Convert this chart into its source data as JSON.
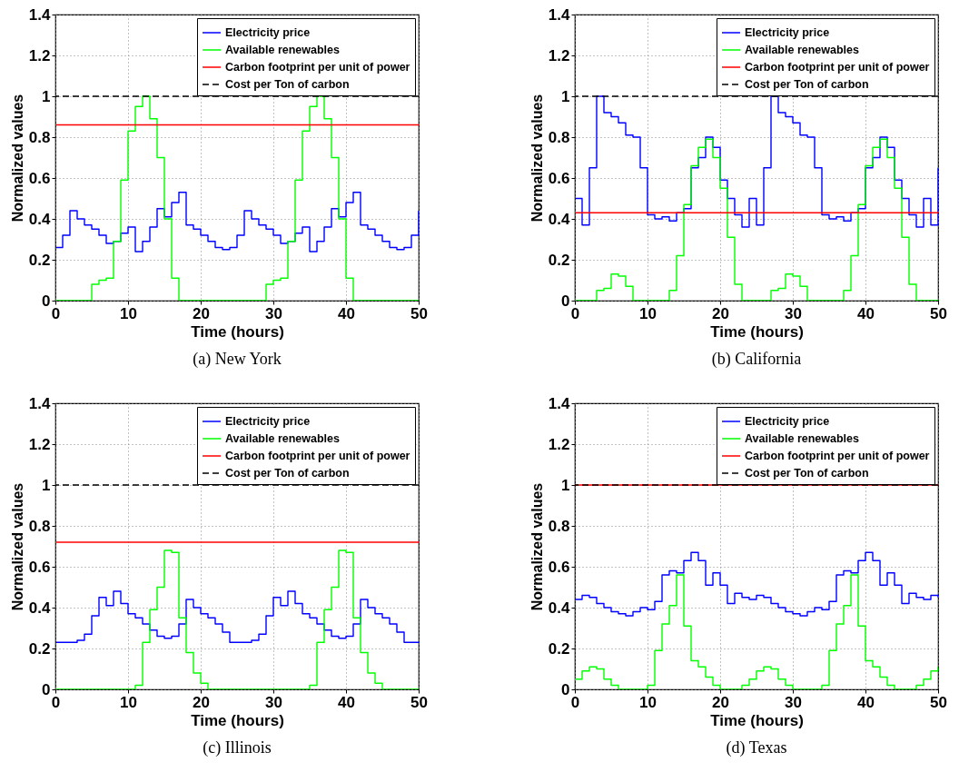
{
  "chart_data": [
    {
      "type": "step",
      "title": "(a) New York",
      "xlabel": "Time (hours)",
      "ylabel": "Normalized values",
      "x": [
        0,
        1,
        2,
        3,
        4,
        5,
        6,
        7,
        8,
        9,
        10,
        11,
        12,
        13,
        14,
        15,
        16,
        17,
        18,
        19,
        20,
        21,
        22,
        23,
        24,
        25,
        26,
        27,
        28,
        29,
        30,
        31,
        32,
        33,
        34,
        35,
        36,
        37,
        38,
        39,
        40,
        41,
        42,
        43,
        44,
        45,
        46,
        47,
        48,
        49,
        50
      ],
      "xlim": [
        0,
        50
      ],
      "xticks": [
        0,
        10,
        20,
        30,
        40,
        50
      ],
      "ylim": [
        0,
        1.4
      ],
      "yticks": [
        0,
        0.2,
        0.4,
        0.6,
        0.8,
        1,
        1.2,
        1.4
      ],
      "grid": true,
      "legend": "top right",
      "series": [
        {
          "name": "Electricity price",
          "color": "#0000ff",
          "values": [
            0.26,
            0.32,
            0.44,
            0.4,
            0.37,
            0.35,
            0.32,
            0.28,
            0.29,
            0.33,
            0.36,
            0.24,
            0.29,
            0.36,
            0.45,
            0.41,
            0.48,
            0.53,
            0.37,
            0.35,
            0.32,
            0.29,
            0.26,
            0.25,
            0.26,
            0.32,
            0.44,
            0.4,
            0.37,
            0.35,
            0.32,
            0.28,
            0.29,
            0.33,
            0.36,
            0.24,
            0.29,
            0.36,
            0.45,
            0.41,
            0.48,
            0.53,
            0.37,
            0.35,
            0.32,
            0.29,
            0.26,
            0.25,
            0.26,
            0.32,
            0.44
          ]
        },
        {
          "name": "Available renewables",
          "color": "#00ff00",
          "values": [
            0,
            0,
            0,
            0,
            0,
            0.08,
            0.1,
            0.11,
            0.29,
            0.59,
            0.83,
            0.95,
            1.0,
            0.89,
            0.7,
            0.4,
            0.11,
            0,
            0,
            0,
            0,
            0,
            0,
            0,
            0,
            0,
            0,
            0,
            0,
            0.08,
            0.1,
            0.11,
            0.29,
            0.59,
            0.83,
            0.95,
            1.0,
            0.89,
            0.7,
            0.4,
            0.11,
            0,
            0,
            0,
            0,
            0,
            0,
            0,
            0,
            0,
            0
          ]
        }
      ],
      "ref_lines": [
        {
          "axis": "y",
          "value": 0.86,
          "label": "Carbon footprint per unit of power",
          "color": "#ff0000"
        },
        {
          "axis": "y",
          "value": 1,
          "label": "Cost per Ton of carbon",
          "color": "#000000",
          "line_style": "dashed"
        }
      ]
    },
    {
      "type": "step",
      "title": "(b) California",
      "xlabel": "Time (hours)",
      "ylabel": "Normalized values",
      "x": [
        0,
        1,
        2,
        3,
        4,
        5,
        6,
        7,
        8,
        9,
        10,
        11,
        12,
        13,
        14,
        15,
        16,
        17,
        18,
        19,
        20,
        21,
        22,
        23,
        24,
        25,
        26,
        27,
        28,
        29,
        30,
        31,
        32,
        33,
        34,
        35,
        36,
        37,
        38,
        39,
        40,
        41,
        42,
        43,
        44,
        45,
        46,
        47,
        48,
        49,
        50
      ],
      "xlim": [
        0,
        50
      ],
      "xticks": [
        0,
        10,
        20,
        30,
        40,
        50
      ],
      "ylim": [
        0,
        1.4
      ],
      "yticks": [
        0,
        0.2,
        0.4,
        0.6,
        0.8,
        1,
        1.2,
        1.4
      ],
      "grid": true,
      "legend": "top right",
      "series": [
        {
          "name": "Electricity price",
          "color": "#0000ff",
          "values": [
            0.5,
            0.37,
            0.65,
            1.0,
            0.92,
            0.9,
            0.87,
            0.81,
            0.8,
            0.65,
            0.42,
            0.4,
            0.41,
            0.39,
            0.43,
            0.45,
            0.65,
            0.7,
            0.8,
            0.75,
            0.59,
            0.5,
            0.42,
            0.36,
            0.5,
            0.37,
            0.65,
            1.0,
            0.92,
            0.9,
            0.87,
            0.81,
            0.8,
            0.65,
            0.42,
            0.4,
            0.41,
            0.39,
            0.43,
            0.45,
            0.65,
            0.7,
            0.8,
            0.75,
            0.59,
            0.5,
            0.42,
            0.36,
            0.5,
            0.37,
            0.65
          ]
        },
        {
          "name": "Available renewables",
          "color": "#00ff00",
          "values": [
            0,
            0,
            0,
            0.05,
            0.06,
            0.13,
            0.12,
            0.07,
            0,
            0,
            0,
            0,
            0,
            0.05,
            0.22,
            0.47,
            0.66,
            0.75,
            0.79,
            0.7,
            0.55,
            0.31,
            0.08,
            0,
            0,
            0,
            0,
            0.05,
            0.06,
            0.13,
            0.12,
            0.07,
            0,
            0,
            0,
            0,
            0,
            0.05,
            0.22,
            0.47,
            0.66,
            0.75,
            0.79,
            0.7,
            0.55,
            0.31,
            0.08,
            0,
            0,
            0,
            0
          ]
        }
      ],
      "ref_lines": [
        {
          "axis": "y",
          "value": 0.43,
          "label": "Carbon footprint per unit of power",
          "color": "#ff0000"
        },
        {
          "axis": "y",
          "value": 1,
          "label": "Cost per Ton of carbon",
          "color": "#000000",
          "line_style": "dashed"
        }
      ]
    },
    {
      "type": "step",
      "title": "(c) Illinois",
      "xlabel": "Time (hours)",
      "ylabel": "Normalized values",
      "x": [
        0,
        1,
        2,
        3,
        4,
        5,
        6,
        7,
        8,
        9,
        10,
        11,
        12,
        13,
        14,
        15,
        16,
        17,
        18,
        19,
        20,
        21,
        22,
        23,
        24,
        25,
        26,
        27,
        28,
        29,
        30,
        31,
        32,
        33,
        34,
        35,
        36,
        37,
        38,
        39,
        40,
        41,
        42,
        43,
        44,
        45,
        46,
        47,
        48,
        49,
        50
      ],
      "xlim": [
        0,
        50
      ],
      "xticks": [
        0,
        10,
        20,
        30,
        40,
        50
      ],
      "ylim": [
        0,
        1.4
      ],
      "yticks": [
        0,
        0.2,
        0.4,
        0.6,
        0.8,
        1,
        1.2,
        1.4
      ],
      "grid": true,
      "legend": "top right",
      "series": [
        {
          "name": "Electricity price",
          "color": "#0000ff",
          "values": [
            0.23,
            0.23,
            0.23,
            0.24,
            0.27,
            0.36,
            0.45,
            0.41,
            0.48,
            0.42,
            0.37,
            0.35,
            0.32,
            0.29,
            0.26,
            0.25,
            0.26,
            0.32,
            0.44,
            0.4,
            0.37,
            0.35,
            0.32,
            0.28,
            0.23,
            0.23,
            0.23,
            0.24,
            0.27,
            0.36,
            0.45,
            0.41,
            0.48,
            0.42,
            0.37,
            0.35,
            0.32,
            0.29,
            0.26,
            0.25,
            0.26,
            0.32,
            0.44,
            0.4,
            0.37,
            0.35,
            0.32,
            0.28,
            0.23,
            0.23,
            0.23
          ]
        },
        {
          "name": "Available renewables",
          "color": "#00ff00",
          "values": [
            0,
            0,
            0,
            0,
            0,
            0,
            0,
            0,
            0,
            0,
            0,
            0.02,
            0.23,
            0.39,
            0.5,
            0.68,
            0.67,
            0.35,
            0.18,
            0.08,
            0.03,
            0,
            0,
            0,
            0,
            0,
            0,
            0,
            0,
            0,
            0,
            0,
            0,
            0,
            0,
            0.02,
            0.23,
            0.39,
            0.5,
            0.68,
            0.67,
            0.35,
            0.18,
            0.08,
            0.03,
            0,
            0,
            0,
            0,
            0,
            0
          ]
        }
      ],
      "ref_lines": [
        {
          "axis": "y",
          "value": 0.72,
          "label": "Carbon footprint per unit of power",
          "color": "#ff0000"
        },
        {
          "axis": "y",
          "value": 1,
          "label": "Cost per Ton of carbon",
          "color": "#000000",
          "line_style": "dashed"
        }
      ]
    },
    {
      "type": "step",
      "title": "(d) Texas",
      "xlabel": "Time (hours)",
      "ylabel": "Normalized values",
      "x": [
        0,
        1,
        2,
        3,
        4,
        5,
        6,
        7,
        8,
        9,
        10,
        11,
        12,
        13,
        14,
        15,
        16,
        17,
        18,
        19,
        20,
        21,
        22,
        23,
        24,
        25,
        26,
        27,
        28,
        29,
        30,
        31,
        32,
        33,
        34,
        35,
        36,
        37,
        38,
        39,
        40,
        41,
        42,
        43,
        44,
        45,
        46,
        47,
        48,
        49,
        50
      ],
      "xlim": [
        0,
        50
      ],
      "xticks": [
        0,
        10,
        20,
        30,
        40,
        50
      ],
      "ylim": [
        0,
        1.4
      ],
      "yticks": [
        0,
        0.2,
        0.4,
        0.6,
        0.8,
        1,
        1.2,
        1.4
      ],
      "grid": true,
      "legend": "top right",
      "series": [
        {
          "name": "Electricity price",
          "color": "#0000ff",
          "values": [
            0.44,
            0.46,
            0.45,
            0.42,
            0.4,
            0.38,
            0.37,
            0.36,
            0.38,
            0.4,
            0.39,
            0.43,
            0.56,
            0.58,
            0.57,
            0.63,
            0.67,
            0.63,
            0.51,
            0.57,
            0.51,
            0.42,
            0.47,
            0.45,
            0.44,
            0.46,
            0.45,
            0.42,
            0.4,
            0.38,
            0.37,
            0.36,
            0.38,
            0.4,
            0.39,
            0.43,
            0.56,
            0.58,
            0.57,
            0.63,
            0.67,
            0.63,
            0.51,
            0.57,
            0.51,
            0.42,
            0.47,
            0.45,
            0.44,
            0.46,
            0.45
          ]
        },
        {
          "name": "Available renewables",
          "color": "#00ff00",
          "values": [
            0.05,
            0.09,
            0.11,
            0.1,
            0.05,
            0.02,
            0,
            0,
            0,
            0,
            0.02,
            0.19,
            0.32,
            0.41,
            0.56,
            0.31,
            0.14,
            0.11,
            0.06,
            0.02,
            0,
            0,
            0,
            0.02,
            0.05,
            0.09,
            0.11,
            0.1,
            0.05,
            0.02,
            0,
            0,
            0,
            0,
            0.02,
            0.19,
            0.32,
            0.41,
            0.56,
            0.31,
            0.14,
            0.11,
            0.06,
            0.02,
            0,
            0,
            0,
            0.02,
            0.05,
            0.09,
            0.11
          ]
        }
      ],
      "ref_lines": [
        {
          "axis": "y",
          "value": 1,
          "label": "Carbon footprint per unit of power",
          "color": "#ff0000"
        },
        {
          "axis": "y",
          "value": 1,
          "label": "Cost per Ton of carbon",
          "color": "#000000",
          "line_style": "dashed"
        }
      ]
    }
  ]
}
